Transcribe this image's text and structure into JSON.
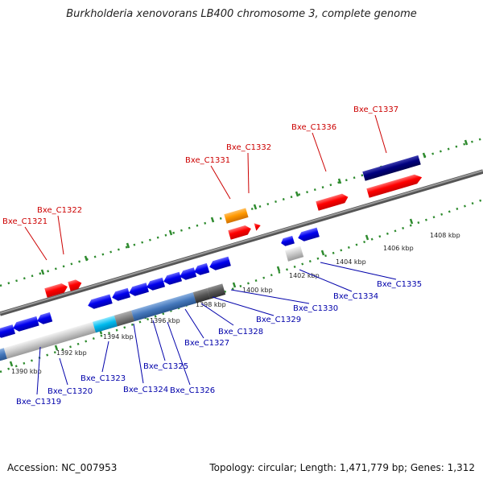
{
  "title": "Burkholderia xenovorans LB400 chromosome 3, complete genome",
  "footer": {
    "accession": "Accession: NC_007953",
    "summary": "Topology: circular; Length: 1,471,779 bp; Genes: 1,312"
  },
  "kbp_ticks": [
    "1390 kbp",
    "1392 kbp",
    "1394 kbp",
    "1396 kbp",
    "1398 kbp",
    "1400 kbp",
    "1402 kbp",
    "1404 kbp",
    "1406 kbp",
    "1408 kbp"
  ],
  "top_genes": [
    "Bxe_C1321",
    "Bxe_C1322",
    "Bxe_C1331",
    "Bxe_C1332",
    "Bxe_C1336",
    "Bxe_C1337"
  ],
  "bottom_genes": [
    "Bxe_C1319",
    "Bxe_C1320",
    "Bxe_C1323",
    "Bxe_C1324",
    "Bxe_C1325",
    "Bxe_C1326",
    "Bxe_C1327",
    "Bxe_C1328",
    "Bxe_C1329",
    "Bxe_C1330",
    "Bxe_C1334",
    "Bxe_C1335"
  ],
  "colors": {
    "top_label": "#cc0000",
    "bottom_label": "#0000aa",
    "forward_gene": "#ff0000",
    "reverse_gene": "#0000ee",
    "highlight_orange": "#ff9900",
    "highlight_navy": "#000080",
    "backbone": "#808080",
    "tick": "#2e8b2e"
  }
}
